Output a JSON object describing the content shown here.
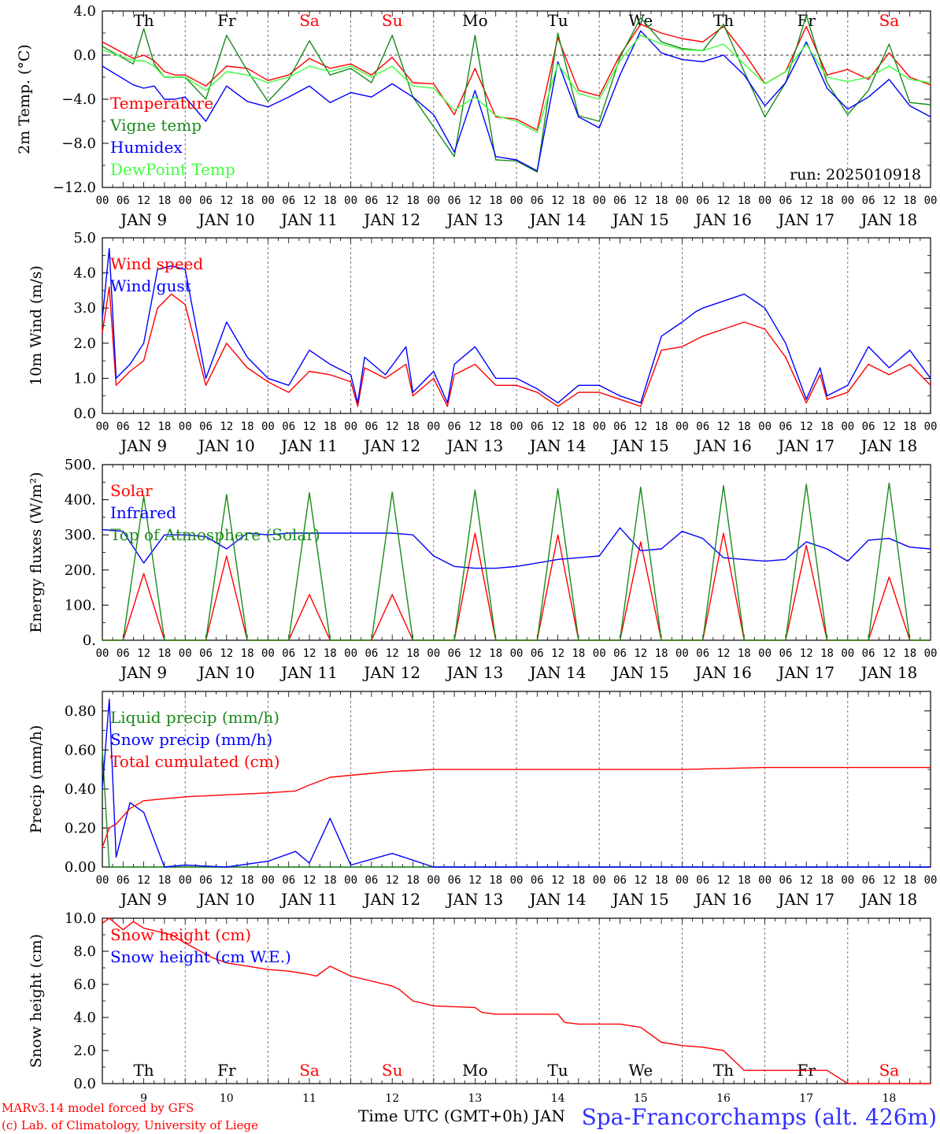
{
  "footer": {
    "credit_line1": "MARv3.14 model forced by GFS",
    "credit_line2": "(c) Lab. of Climatology, University of Liege",
    "xlabel": "Time UTC (GMT+0h) JAN",
    "station": "Spa-Francorchamps (alt. 426m)"
  },
  "colors": {
    "red": "#ff0000",
    "darkgreen": "#1a8a1a",
    "blue": "#0000ff",
    "lightgreen": "#3cff3c",
    "weekend": "#ff0000",
    "weekday": "#000000"
  },
  "time_axis": {
    "hour_ticks": [
      "00",
      "06",
      "12",
      "18"
    ],
    "date_labels": [
      "JAN  9",
      "JAN 10",
      "JAN 11",
      "JAN 12",
      "JAN 13",
      "JAN 14",
      "JAN 15",
      "JAN 16",
      "JAN 17",
      "JAN 18"
    ],
    "day_numbers": [
      "9",
      "10",
      "11",
      "12",
      "13",
      "14",
      "15",
      "16",
      "17",
      "18"
    ],
    "weekdays": [
      {
        "label": "Th",
        "weekend": false
      },
      {
        "label": "Fr",
        "weekend": false
      },
      {
        "label": "Sa",
        "weekend": true
      },
      {
        "label": "Su",
        "weekend": true
      },
      {
        "label": "Mo",
        "weekend": false
      },
      {
        "label": "Tu",
        "weekend": false
      },
      {
        "label": "We",
        "weekend": false
      },
      {
        "label": "Th",
        "weekend": false
      },
      {
        "label": "Fr",
        "weekend": false
      },
      {
        "label": "Sa",
        "weekend": true
      }
    ]
  },
  "chart_data": [
    {
      "type": "line",
      "id": "temperature",
      "ylabel": "2m Temp. (°C)",
      "ylim": [
        -12,
        4
      ],
      "yticks": [
        -12,
        -8,
        -4,
        0,
        4
      ],
      "ytick_labels": [
        "−12.0",
        "−8.0",
        "−4.0",
        "0.0",
        "4.0"
      ],
      "zero_line": true,
      "annotation": "run: 2025010918",
      "x_hours": [
        0,
        9,
        12,
        15,
        18,
        21,
        24,
        30,
        36,
        42,
        48,
        54,
        60,
        66,
        72,
        78,
        84,
        90,
        96,
        102,
        108,
        114,
        120,
        126,
        132,
        138,
        144,
        150,
        156,
        162,
        168,
        174,
        180,
        186,
        192,
        198,
        204,
        210,
        216,
        222,
        228,
        234,
        240
      ],
      "series": [
        {
          "name": "Temperature",
          "color": "red",
          "values": [
            1.2,
            -0.3,
            0.0,
            -0.5,
            -1.5,
            -1.8,
            -1.8,
            -2.8,
            -1.0,
            -1.2,
            -2.3,
            -1.8,
            -0.3,
            -1.2,
            -0.8,
            -1.8,
            -0.2,
            -2.5,
            -2.6,
            -5.4,
            -1.2,
            -5.6,
            -5.8,
            -6.8,
            1.6,
            -3.2,
            -3.7,
            0.0,
            2.8,
            2.0,
            1.5,
            1.2,
            2.6,
            0.2,
            -2.6,
            -1.5,
            2.6,
            -1.8,
            -1.3,
            -2.2,
            0.2,
            -2.0,
            -2.7
          ]
        },
        {
          "name": "Vigne temp",
          "color": "darkgreen",
          "values": [
            0.8,
            -0.8,
            2.4,
            -0.8,
            -2.0,
            -2.0,
            -2.0,
            -4.0,
            1.8,
            -1.4,
            -4.2,
            -2.2,
            1.3,
            -1.8,
            -1.2,
            -2.5,
            1.8,
            -3.8,
            -6.5,
            -9.2,
            1.8,
            -9.5,
            -9.6,
            -10.6,
            2.0,
            -5.5,
            -6.0,
            -0.2,
            3.4,
            1.2,
            0.6,
            0.4,
            2.8,
            -1.5,
            -5.6,
            -2.5,
            3.6,
            -2.5,
            -5.4,
            -3.2,
            1.0,
            -4.3,
            -4.5
          ]
        },
        {
          "name": "Humidex",
          "color": "blue",
          "values": [
            -1.0,
            -2.7,
            -3.0,
            -2.8,
            -4.0,
            -4.0,
            -3.8,
            -6.0,
            -2.8,
            -4.2,
            -4.7,
            -3.8,
            -2.8,
            -4.3,
            -3.4,
            -3.8,
            -2.6,
            -3.8,
            -5.4,
            -8.8,
            -3.2,
            -9.2,
            -9.5,
            -10.5,
            -0.6,
            -5.6,
            -6.6,
            -1.8,
            2.2,
            0.2,
            -0.4,
            -0.6,
            0.0,
            -1.8,
            -4.6,
            -2.5,
            1.2,
            -3.0,
            -4.9,
            -3.8,
            -2.2,
            -4.6,
            -5.6
          ]
        },
        {
          "name": "DewPoint Temp",
          "color": "lightgreen",
          "values": [
            0.5,
            -0.5,
            -0.5,
            -1.0,
            -2.0,
            -2.0,
            -2.0,
            -3.2,
            -1.5,
            -1.8,
            -2.5,
            -2.0,
            -1.0,
            -1.5,
            -1.0,
            -2.0,
            -1.0,
            -2.8,
            -3.0,
            -5.0,
            -3.8,
            -5.5,
            -6.0,
            -7.0,
            -0.8,
            -3.5,
            -4.0,
            -0.5,
            1.8,
            1.0,
            0.5,
            0.4,
            1.0,
            -0.8,
            -2.6,
            -1.5,
            1.0,
            -2.0,
            -2.4,
            -2.0,
            -1.0,
            -2.2,
            -2.5
          ]
        }
      ]
    },
    {
      "type": "line",
      "id": "wind",
      "ylabel": "10m Wind (m/s)",
      "ylim": [
        0,
        5
      ],
      "yticks": [
        0,
        1,
        2,
        3,
        4,
        5
      ],
      "ytick_labels": [
        "0.0",
        "1.0",
        "2.0",
        "3.0",
        "4.0",
        "5.0"
      ],
      "x_hours": [
        0,
        2,
        4,
        8,
        12,
        16,
        20,
        24,
        30,
        36,
        42,
        48,
        54,
        60,
        66,
        72,
        74,
        76,
        82,
        88,
        90,
        96,
        100,
        102,
        108,
        114,
        120,
        126,
        132,
        138,
        144,
        150,
        156,
        162,
        168,
        172,
        174,
        180,
        186,
        192,
        198,
        204,
        208,
        210,
        216,
        222,
        228,
        234,
        240
      ],
      "series": [
        {
          "name": "Wind speed",
          "color": "red",
          "values": [
            2.3,
            3.6,
            0.8,
            1.2,
            1.5,
            3.0,
            3.4,
            3.1,
            0.8,
            2.0,
            1.3,
            0.9,
            0.6,
            1.2,
            1.1,
            0.9,
            0.2,
            1.3,
            1.0,
            1.4,
            0.5,
            1.0,
            0.2,
            1.1,
            1.4,
            0.8,
            0.8,
            0.6,
            0.2,
            0.6,
            0.6,
            0.4,
            0.2,
            1.8,
            1.9,
            2.1,
            2.2,
            2.4,
            2.6,
            2.4,
            1.6,
            0.3,
            1.1,
            0.4,
            0.6,
            1.4,
            1.1,
            1.4,
            0.8
          ]
        },
        {
          "name": "Wind gust",
          "color": "blue",
          "values": [
            2.7,
            4.7,
            1.0,
            1.4,
            2.0,
            4.1,
            4.2,
            4.1,
            1.0,
            2.6,
            1.6,
            1.0,
            0.8,
            1.8,
            1.4,
            1.1,
            0.3,
            1.6,
            1.1,
            1.9,
            0.6,
            1.2,
            0.3,
            1.4,
            1.9,
            1.0,
            1.0,
            0.7,
            0.3,
            0.8,
            0.8,
            0.5,
            0.3,
            2.2,
            2.6,
            2.9,
            3.0,
            3.2,
            3.4,
            3.0,
            2.0,
            0.4,
            1.3,
            0.5,
            0.8,
            1.9,
            1.3,
            1.8,
            1.0
          ]
        }
      ]
    },
    {
      "type": "line",
      "id": "fluxes",
      "ylabel": "Energy fluxes (W/m²)",
      "ylim": [
        0,
        500
      ],
      "yticks": [
        0,
        100,
        200,
        300,
        400,
        500
      ],
      "ytick_labels": [
        "0.",
        "100.",
        "200.",
        "300.",
        "400.",
        "500."
      ],
      "x_hours": [
        0,
        6,
        12,
        18,
        24,
        30,
        36,
        42,
        48,
        54,
        60,
        66,
        72,
        78,
        84,
        90,
        96,
        102,
        108,
        114,
        120,
        126,
        132,
        138,
        144,
        150,
        156,
        162,
        168,
        174,
        180,
        186,
        192,
        198,
        204,
        210,
        216,
        222,
        228,
        234,
        240
      ],
      "series": [
        {
          "name": "Solar",
          "color": "red",
          "values": [
            0,
            0,
            190,
            0,
            0,
            0,
            240,
            0,
            0,
            0,
            130,
            0,
            0,
            0,
            130,
            0,
            0,
            0,
            305,
            0,
            0,
            0,
            300,
            0,
            0,
            0,
            280,
            0,
            0,
            0,
            305,
            0,
            0,
            0,
            270,
            0,
            0,
            0,
            180,
            0,
            0
          ]
        },
        {
          "name": "Infrared",
          "color": "blue",
          "values": [
            315,
            310,
            220,
            300,
            300,
            295,
            260,
            305,
            300,
            305,
            305,
            305,
            305,
            305,
            305,
            300,
            240,
            210,
            205,
            205,
            210,
            220,
            230,
            235,
            240,
            320,
            255,
            260,
            310,
            290,
            235,
            230,
            225,
            230,
            280,
            260,
            225,
            285,
            290,
            265,
            260
          ]
        },
        {
          "name": "Top of Atmosphere (Solar)",
          "color": "darkgreen",
          "values": [
            0,
            0,
            410,
            0,
            0,
            0,
            415,
            0,
            0,
            0,
            420,
            0,
            0,
            0,
            422,
            0,
            0,
            0,
            428,
            0,
            0,
            0,
            432,
            0,
            0,
            0,
            436,
            0,
            0,
            0,
            440,
            0,
            0,
            0,
            444,
            0,
            0,
            0,
            448,
            0,
            0
          ]
        }
      ]
    },
    {
      "type": "line",
      "id": "precip",
      "ylabel": "Precip (mm/h)",
      "ylim": [
        0,
        0.9
      ],
      "yticks": [
        0,
        0.2,
        0.4,
        0.6,
        0.8
      ],
      "ytick_labels": [
        "0.00",
        "0.20",
        "0.40",
        "0.60",
        "0.80"
      ],
      "x_hours": [
        0,
        2,
        4,
        8,
        12,
        18,
        24,
        36,
        48,
        56,
        60,
        66,
        72,
        84,
        96,
        120,
        144,
        168,
        192,
        216,
        240
      ],
      "series": [
        {
          "name": "Liquid precip (mm/h)",
          "color": "darkgreen",
          "values": [
            0.6,
            0.0,
            0.0,
            0.0,
            0.0,
            0.0,
            0.0,
            0.0,
            0.0,
            0.0,
            0.0,
            0.0,
            0.0,
            0.0,
            0.0,
            0.0,
            0.0,
            0.0,
            0.0,
            0.0,
            0.0
          ]
        },
        {
          "name": "Snow precip (mm/h)",
          "color": "blue",
          "values": [
            0.4,
            0.86,
            0.05,
            0.33,
            0.28,
            0.0,
            0.01,
            0.0,
            0.03,
            0.08,
            0.02,
            0.25,
            0.01,
            0.07,
            0.0,
            0.0,
            0.0,
            0.0,
            0.0,
            0.0,
            0.0
          ]
        },
        {
          "name": "Total cumulated (cm)",
          "color": "red",
          "values": [
            0.1,
            0.2,
            0.22,
            0.3,
            0.34,
            0.35,
            0.36,
            0.37,
            0.38,
            0.39,
            0.42,
            0.46,
            0.47,
            0.49,
            0.5,
            0.5,
            0.5,
            0.5,
            0.51,
            0.51,
            0.51
          ]
        }
      ]
    },
    {
      "type": "line",
      "id": "snow",
      "ylabel": "Snow height (cm)",
      "ylim": [
        0,
        10
      ],
      "yticks": [
        0,
        2,
        4,
        6,
        8,
        10
      ],
      "ytick_labels": [
        "0.0",
        "2.0",
        "4.0",
        "6.0",
        "8.0",
        "10.0"
      ],
      "x_hours": [
        0,
        2,
        6,
        9,
        12,
        20,
        24,
        32,
        36,
        48,
        54,
        60,
        62,
        66,
        72,
        84,
        86,
        90,
        96,
        108,
        110,
        114,
        120,
        132,
        134,
        138,
        144,
        150,
        156,
        162,
        168,
        174,
        180,
        186,
        192,
        204,
        210,
        216,
        228,
        240
      ],
      "series": [
        {
          "name": "Snow height (cm)",
          "color": "red",
          "values": [
            9.7,
            10.0,
            9.3,
            9.8,
            9.4,
            9.0,
            8.5,
            7.6,
            7.3,
            6.9,
            6.8,
            6.6,
            6.5,
            7.1,
            6.5,
            5.9,
            5.7,
            5.0,
            4.7,
            4.6,
            4.3,
            4.2,
            4.2,
            4.2,
            3.7,
            3.6,
            3.6,
            3.6,
            3.4,
            2.5,
            2.3,
            2.2,
            2.0,
            0.8,
            0.8,
            0.8,
            0.8,
            0.0,
            0.0,
            0.0
          ]
        },
        {
          "name": "Snow height (cm W.E.)",
          "color": "blue",
          "values": []
        }
      ]
    }
  ]
}
